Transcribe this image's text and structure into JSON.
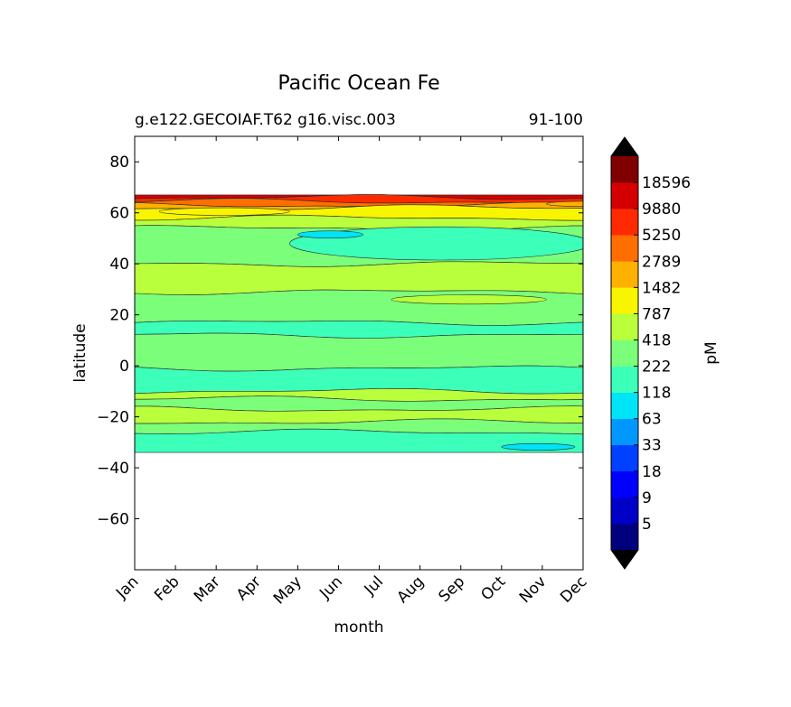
{
  "chart_data": {
    "type": "contourf",
    "title": "Pacific Ocean Fe",
    "subtitle_left": "g.e122.GECOIAF.T62 g16.visc.003",
    "subtitle_right": "91-100",
    "xlabel": "month",
    "ylabel": "latitude",
    "x_categories": [
      "Jan",
      "Feb",
      "Mar",
      "Apr",
      "May",
      "Jun",
      "Jul",
      "Aug",
      "Sep",
      "Oct",
      "Nov",
      "Dec"
    ],
    "ylim": [
      -80,
      90
    ],
    "yticks": [
      80,
      60,
      40,
      20,
      0,
      -20,
      -40,
      -60
    ],
    "ytick_labels": [
      "80",
      "60",
      "40",
      "20",
      "0",
      "−20",
      "−40",
      "−60"
    ],
    "data_lat_range": [
      -34,
      67
    ],
    "colorbar": {
      "label": "pM",
      "levels": [
        5,
        9,
        18,
        33,
        63,
        118,
        222,
        418,
        787,
        1482,
        2789,
        5250,
        9880,
        18596
      ],
      "level_labels": [
        "5",
        "9",
        "18",
        "33",
        "63",
        "118",
        "222",
        "418",
        "787",
        "1482",
        "2789",
        "5250",
        "9880",
        "18596"
      ],
      "colors": [
        "#00007f",
        "#0000c8",
        "#0000ff",
        "#0040ff",
        "#0098ff",
        "#00e4f8",
        "#3cffba",
        "#7bff7b",
        "#b9ff3c",
        "#f8f500",
        "#ffb100",
        "#ff6e00",
        "#ff2a00",
        "#d40000",
        "#800000"
      ],
      "extend_color": "#000000"
    },
    "bands": [
      {
        "lat_min": 66,
        "lat_max": 67,
        "level_index": 13
      },
      {
        "lat_min": 64.5,
        "lat_max": 66,
        "level_index": 12
      },
      {
        "lat_min": 63,
        "lat_max": 64.5,
        "level_index": 11
      },
      {
        "lat_min": 62,
        "lat_max": 63,
        "level_index": 10
      },
      {
        "lat_min": 58,
        "lat_max": 62,
        "level_index": 9
      },
      {
        "lat_min": 54,
        "lat_max": 58,
        "level_index": 8
      },
      {
        "lat_min": 40,
        "lat_max": 54,
        "level_index": 7
      },
      {
        "lat_min": 29,
        "lat_max": 40,
        "level_index": 8
      },
      {
        "lat_min": 17,
        "lat_max": 29,
        "level_index": 7
      },
      {
        "lat_min": 12,
        "lat_max": 17,
        "level_index": 6
      },
      {
        "lat_min": -1,
        "lat_max": 12,
        "level_index": 7
      },
      {
        "lat_min": -10,
        "lat_max": -1,
        "level_index": 6
      },
      {
        "lat_min": -13,
        "lat_max": -10,
        "level_index": 8
      },
      {
        "lat_min": -17,
        "lat_max": -13,
        "level_index": 7
      },
      {
        "lat_min": -22,
        "lat_max": -17,
        "level_index": 8
      },
      {
        "lat_min": -26,
        "lat_max": -22,
        "level_index": 7
      },
      {
        "lat_min": -34,
        "lat_max": -26,
        "level_index": 6
      }
    ],
    "blobs": [
      {
        "month_center": 7.5,
        "lat_center": 48,
        "month_radius": 3.7,
        "lat_radius": 6.5,
        "level_index": 6
      },
      {
        "month_center": 4.8,
        "lat_center": 51.5,
        "month_radius": 0.8,
        "lat_radius": 1.4,
        "level_index": 5
      },
      {
        "month_center": 8.2,
        "lat_center": 26,
        "month_radius": 1.9,
        "lat_radius": 1.8,
        "level_index": 8
      },
      {
        "month_center": 9.9,
        "lat_center": -31.8,
        "month_radius": 0.9,
        "lat_radius": 1.3,
        "level_index": 5
      },
      {
        "month_center": 2.2,
        "lat_center": 60.5,
        "month_radius": 1.6,
        "lat_radius": 1.5,
        "level_index": 9
      },
      {
        "month_center": 10.9,
        "lat_center": 63.5,
        "month_radius": 0.8,
        "lat_radius": 1,
        "level_index": 10
      }
    ]
  }
}
